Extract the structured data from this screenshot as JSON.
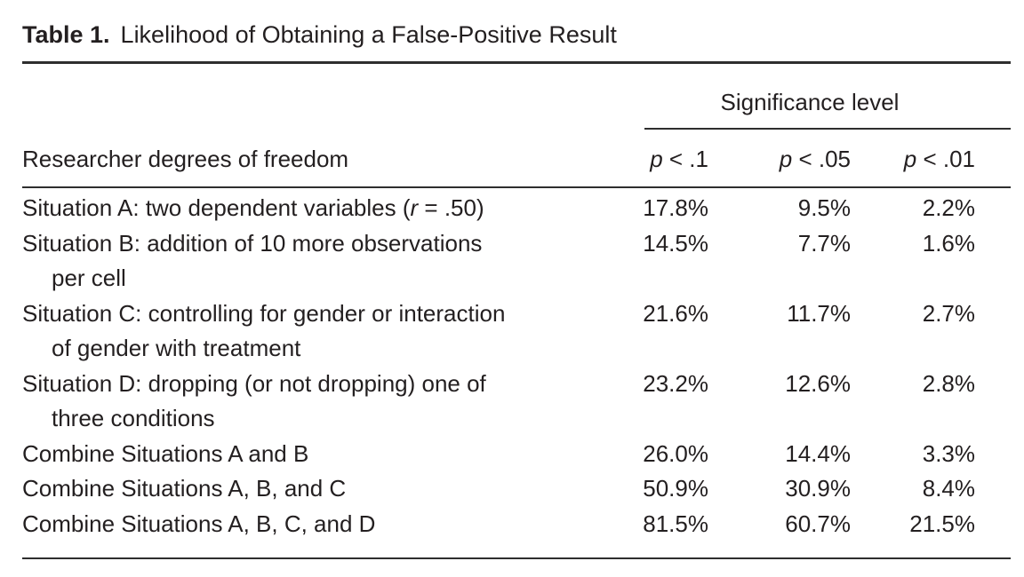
{
  "title": {
    "label": "Table 1.",
    "text": "Likelihood of Obtaining a False-Positive Result"
  },
  "header": {
    "spanner": "Significance level",
    "row_label": "Researcher degrees of freedom",
    "columns": [
      {
        "var": "p",
        "rel": " < .1"
      },
      {
        "var": "p",
        "rel": " < .05"
      },
      {
        "var": "p",
        "rel": " < .01"
      }
    ]
  },
  "rows": [
    {
      "line1_pre": "Situation A: two dependent variables (",
      "line1_italic": "r",
      "line1_post": " = .50)",
      "line2": "",
      "values": [
        "17.8%",
        "9.5%",
        "2.2%"
      ]
    },
    {
      "line1_pre": "Situation B: addition of 10 more observations",
      "line1_italic": "",
      "line1_post": "",
      "line2": "per cell",
      "values": [
        "14.5%",
        "7.7%",
        "1.6%"
      ]
    },
    {
      "line1_pre": "Situation C: controlling for gender or interaction",
      "line1_italic": "",
      "line1_post": "",
      "line2": "of gender with treatment",
      "values": [
        "21.6%",
        "11.7%",
        "2.7%"
      ]
    },
    {
      "line1_pre": "Situation D: dropping (or not dropping) one of",
      "line1_italic": "",
      "line1_post": "",
      "line2": "three conditions",
      "values": [
        "23.2%",
        "12.6%",
        "2.8%"
      ]
    },
    {
      "line1_pre": "Combine Situations A and B",
      "line1_italic": "",
      "line1_post": "",
      "line2": "",
      "values": [
        "26.0%",
        "14.4%",
        "3.3%"
      ]
    },
    {
      "line1_pre": "Combine Situations A, B, and C",
      "line1_italic": "",
      "line1_post": "",
      "line2": "",
      "values": [
        "50.9%",
        "30.9%",
        "8.4%"
      ]
    },
    {
      "line1_pre": "Combine Situations A, B, C, and D",
      "line1_italic": "",
      "line1_post": "",
      "line2": "",
      "values": [
        "81.5%",
        "60.7%",
        "21.5%"
      ]
    }
  ],
  "colors": {
    "text": "#231f20",
    "rule": "#2e2e2e",
    "background": "#ffffff"
  }
}
